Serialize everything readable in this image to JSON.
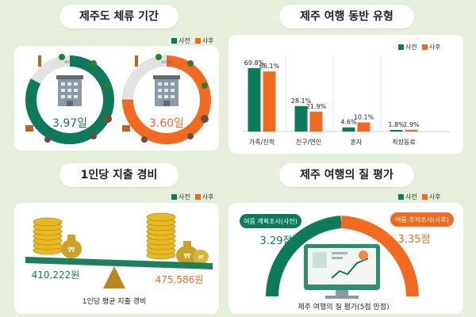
{
  "colors": {
    "before": "#0e7a5c",
    "after": "#f26a21",
    "bg": "#e6efdc",
    "scale_bar": "#1e7f5a",
    "scale_pan": "#b58a23"
  },
  "legend": {
    "before": "사전",
    "after": "사후"
  },
  "stay": {
    "title": "제주도 체류 기간",
    "hotel_label": "HOTEL",
    "before_value": "3.97일",
    "after_value": "3.60일"
  },
  "spend": {
    "title": "1인당 지출 경비",
    "before_value": "410,222원",
    "after_value": "475,586원",
    "caption": "1인당 평균 지출 경비"
  },
  "quality": {
    "title": "제주 여행의 질 평가",
    "before_label": "여름 계획조사(사전)",
    "before_value": "3.29점",
    "after_label": "여름 추적조사(사후)",
    "after_value": "3.35점",
    "caption": "제주 여행의 질 평가(5점 만점)"
  },
  "chart_data": [
    {
      "type": "bar",
      "title": "제주 여행 동반 유형",
      "categories": [
        "가족/친척",
        "친구/연인",
        "혼자",
        "직장동료"
      ],
      "series": [
        {
          "name": "사전",
          "values": [
            69.8,
            28.1,
            4.6,
            1.8
          ],
          "labels": [
            "69.8%",
            "28.1%",
            "4.6%",
            "1.8%"
          ]
        },
        {
          "name": "사후",
          "values": [
            66.1,
            21.9,
            10.1,
            1.9
          ],
          "labels": [
            "66.1%",
            "21.9%",
            "10.1%",
            "1.9%"
          ]
        }
      ],
      "legend": "top-right",
      "grid": false
    }
  ]
}
